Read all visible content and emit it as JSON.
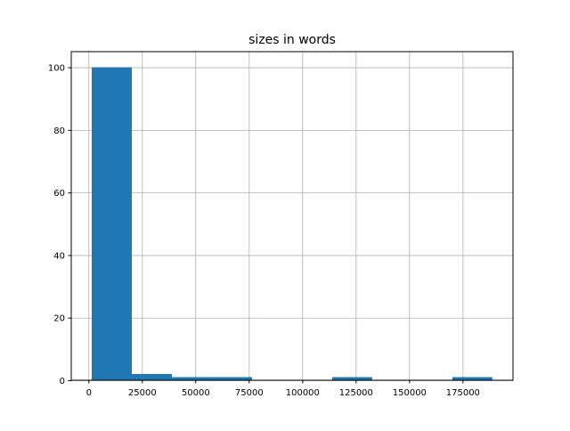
{
  "chart_data": {
    "type": "bar",
    "histogram": true,
    "title": "sizes in words",
    "xlabel": "",
    "ylabel": "",
    "bin_edges": [
      1540,
      20280,
      39020,
      57760,
      76500,
      95240,
      113980,
      132720,
      151460,
      170200,
      188940
    ],
    "values": [
      100,
      2,
      1,
      1,
      0,
      0,
      1,
      0,
      0,
      1
    ],
    "xlim": [
      -8040,
      198600
    ],
    "ylim": [
      0,
      105
    ],
    "xticks": [
      0,
      25000,
      50000,
      75000,
      100000,
      125000,
      150000,
      175000
    ],
    "yticks": [
      0,
      20,
      40,
      60,
      80,
      100
    ],
    "grid": true,
    "bar_color": "#1f77b4",
    "grid_color": "#b0b0b0"
  }
}
